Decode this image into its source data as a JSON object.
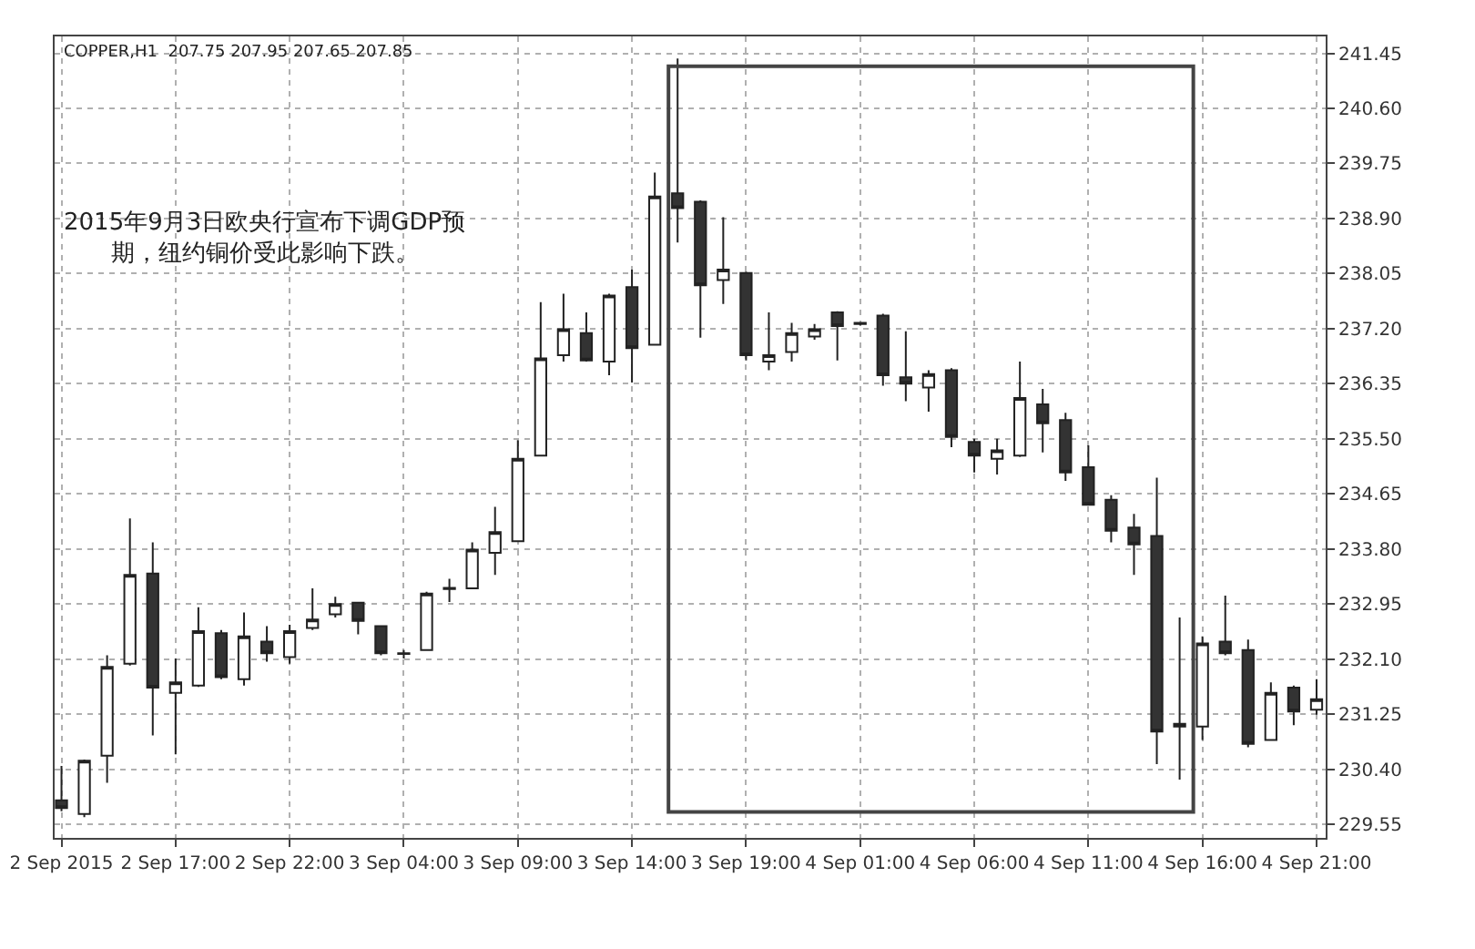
{
  "chart_data": {
    "type": "candlestick",
    "title": "COPPER,H1  207.75 207.95 207.65 207.85",
    "categories": [
      "2 Sep 2015",
      null,
      null,
      null,
      null,
      "2 Sep 17:00",
      null,
      null,
      null,
      null,
      "2 Sep 22:00",
      null,
      null,
      null,
      null,
      "3 Sep 04:00",
      null,
      null,
      null,
      null,
      "3 Sep 09:00",
      null,
      null,
      null,
      null,
      "3 Sep 14:00",
      null,
      null,
      null,
      null,
      "3 Sep 19:00",
      null,
      null,
      null,
      null,
      "4 Sep 01:00",
      null,
      null,
      null,
      null,
      "4 Sep 06:00",
      null,
      null,
      null,
      null,
      "4 Sep 11:00",
      null,
      null,
      null,
      null,
      "4 Sep 16:00",
      null,
      null,
      null,
      null,
      "4 Sep 21:00"
    ],
    "ohlc": [
      [
        229.92,
        230.45,
        229.75,
        229.8
      ],
      [
        229.71,
        230.55,
        229.66,
        230.53
      ],
      [
        230.61,
        232.16,
        230.19,
        231.98
      ],
      [
        232.03,
        234.27,
        232.0,
        233.4
      ],
      [
        233.42,
        233.9,
        230.92,
        231.66
      ],
      [
        231.58,
        232.11,
        230.63,
        231.74
      ],
      [
        231.69,
        232.9,
        231.67,
        232.53
      ],
      [
        232.5,
        232.55,
        231.79,
        231.82
      ],
      [
        231.79,
        232.82,
        231.69,
        232.45
      ],
      [
        232.37,
        232.61,
        232.06,
        232.19
      ],
      [
        232.13,
        232.63,
        232.03,
        232.53
      ],
      [
        232.58,
        233.19,
        232.55,
        232.71
      ],
      [
        232.79,
        233.06,
        232.74,
        232.95
      ],
      [
        232.97,
        232.98,
        232.48,
        232.69
      ],
      [
        232.61,
        232.62,
        232.16,
        232.19
      ],
      [
        232.19,
        232.24,
        232.11,
        232.18
      ],
      [
        232.24,
        233.14,
        232.24,
        233.11
      ],
      [
        233.18,
        233.34,
        232.98,
        233.2
      ],
      [
        233.19,
        233.9,
        233.19,
        233.79
      ],
      [
        233.74,
        234.45,
        233.4,
        234.06
      ],
      [
        233.92,
        235.48,
        233.92,
        235.19
      ],
      [
        235.24,
        237.61,
        235.24,
        236.74
      ],
      [
        236.79,
        237.74,
        236.69,
        237.19
      ],
      [
        237.13,
        237.45,
        236.69,
        236.71
      ],
      [
        236.69,
        237.74,
        236.48,
        237.71
      ],
      [
        237.84,
        238.11,
        236.37,
        236.9
      ],
      [
        236.95,
        239.61,
        236.95,
        239.24
      ],
      [
        239.29,
        241.37,
        238.53,
        239.06
      ],
      [
        239.16,
        239.18,
        237.06,
        237.87
      ],
      [
        237.95,
        238.92,
        237.58,
        238.11
      ],
      [
        238.06,
        238.08,
        236.71,
        236.79
      ],
      [
        236.69,
        237.45,
        236.56,
        236.79
      ],
      [
        236.84,
        237.29,
        236.69,
        237.13
      ],
      [
        237.08,
        237.27,
        237.03,
        237.19
      ],
      [
        237.45,
        237.47,
        236.71,
        237.24
      ],
      [
        237.29,
        237.3,
        237.25,
        237.27
      ],
      [
        237.4,
        237.43,
        236.32,
        236.48
      ],
      [
        236.45,
        237.16,
        236.08,
        236.35
      ],
      [
        236.29,
        236.56,
        235.92,
        236.5
      ],
      [
        236.56,
        236.59,
        235.37,
        235.53
      ],
      [
        235.45,
        235.5,
        234.98,
        235.24
      ],
      [
        235.19,
        235.5,
        234.95,
        235.32
      ],
      [
        235.24,
        236.69,
        235.22,
        236.13
      ],
      [
        236.03,
        236.27,
        235.29,
        235.74
      ],
      [
        235.79,
        235.9,
        234.85,
        234.98
      ],
      [
        235.06,
        235.4,
        234.48,
        234.48
      ],
      [
        234.56,
        234.63,
        233.9,
        234.08
      ],
      [
        234.13,
        234.34,
        233.4,
        233.87
      ],
      [
        234.0,
        234.9,
        230.48,
        230.98
      ],
      [
        231.1,
        232.74,
        230.24,
        231.06
      ],
      [
        231.06,
        232.45,
        230.85,
        232.34
      ],
      [
        232.37,
        233.08,
        232.16,
        232.19
      ],
      [
        232.24,
        232.4,
        230.74,
        230.79
      ],
      [
        230.85,
        231.74,
        230.85,
        231.58
      ],
      [
        231.66,
        231.69,
        231.08,
        231.29
      ],
      [
        231.32,
        231.79,
        231.24,
        231.48
      ]
    ],
    "ylim": [
      229.34,
      241.71
    ],
    "yticks": [
      241.45,
      {
        "value": 240.6,
        "label": "240.60"
      },
      239.75,
      {
        "value": 238.9,
        "label": "238.90"
      },
      238.05,
      {
        "value": 237.2,
        "label": "237.20"
      },
      236.35,
      {
        "value": 235.5,
        "label": "235.50"
      },
      234.65,
      {
        "value": 233.8,
        "label": "233.80"
      },
      232.95,
      {
        "value": 232.1,
        "label": "232.10"
      },
      231.25,
      {
        "value": 230.4,
        "label": "230.40"
      },
      229.55
    ],
    "grid": true,
    "annotations": [
      "2015年9月3日欧央行宣布下调GDP预期，纽约铜价受此影响下跌。"
    ]
  }
}
